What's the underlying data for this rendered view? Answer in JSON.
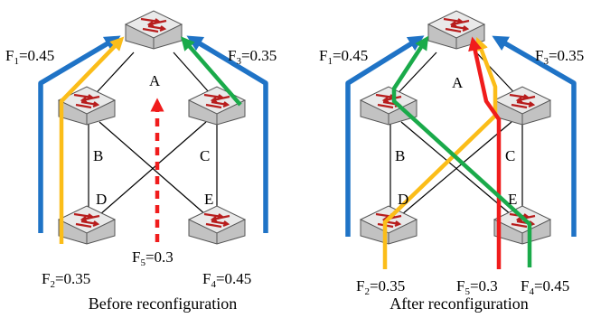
{
  "colors": {
    "blue": "#1f73c6",
    "yellow": "#fbbd19",
    "green": "#1aaa4a",
    "red": "#f01c1c",
    "switch_top": "#e9e9e9",
    "switch_side": "#c2c2c2",
    "switch_arrow": "#b81d1d"
  },
  "icons": {
    "node": "network-switch-icon"
  },
  "panels": [
    {
      "caption": "Before reconfiguration",
      "nodes": {
        "A": "A",
        "B": "B",
        "C": "C",
        "D": "D",
        "E": "E"
      },
      "flows": [
        {
          "id": "F1",
          "sym": "F",
          "sub": "1",
          "value": "=0.45"
        },
        {
          "id": "F2",
          "sym": "F",
          "sub": "2",
          "value": "=0.35"
        },
        {
          "id": "F3",
          "sym": "F",
          "sub": "3",
          "value": "=0.35"
        },
        {
          "id": "F4",
          "sym": "F",
          "sub": "4",
          "value": "=0.45"
        },
        {
          "id": "F5",
          "sym": "F",
          "sub": "5",
          "value": "=0.3"
        }
      ]
    },
    {
      "caption": "After reconfiguration",
      "nodes": {
        "A": "A",
        "B": "B",
        "C": "C",
        "D": "D",
        "E": "E"
      },
      "flows": [
        {
          "id": "F1",
          "sym": "F",
          "sub": "1",
          "value": "=0.45"
        },
        {
          "id": "F2",
          "sym": "F",
          "sub": "2",
          "value": "=0.35"
        },
        {
          "id": "F3",
          "sym": "F",
          "sub": "3",
          "value": "=0.35"
        },
        {
          "id": "F4",
          "sym": "F",
          "sub": "4",
          "value": "=0.45"
        },
        {
          "id": "F5",
          "sym": "F",
          "sub": "5",
          "value": "=0.3"
        }
      ]
    }
  ]
}
